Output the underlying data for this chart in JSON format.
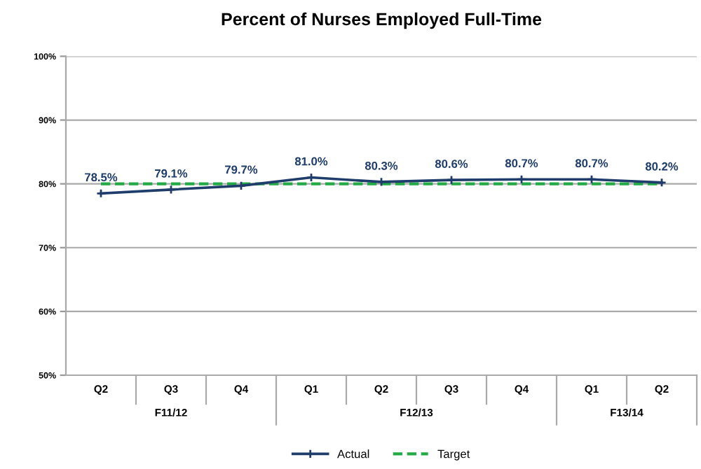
{
  "chart_data": {
    "type": "line",
    "title": "Percent of Nurses Employed Full-Time",
    "categories": [
      "Q2",
      "Q3",
      "Q4",
      "Q1",
      "Q2",
      "Q3",
      "Q4",
      "Q1",
      "Q2"
    ],
    "series": [
      {
        "name": "Actual",
        "color": "#1f3d6b",
        "marker": "cross",
        "line_style": "solid",
        "values": [
          78.5,
          79.1,
          79.7,
          81.0,
          80.3,
          80.6,
          80.7,
          80.7,
          80.2
        ],
        "value_labels": [
          "78.5%",
          "79.1%",
          "79.7%",
          "81.0%",
          "80.3%",
          "80.6%",
          "80.7%",
          "80.7%",
          "80.2%"
        ]
      },
      {
        "name": "Target",
        "color": "#22aa44",
        "marker": "none",
        "line_style": "dashed",
        "values": [
          80,
          80,
          80,
          80,
          80,
          80,
          80,
          80,
          80
        ]
      }
    ],
    "annotations": [
      "F11/12",
      "F12/13",
      "F13/14"
    ],
    "ylim": [
      50,
      100
    ],
    "yticks": [
      {
        "value": 50,
        "label": "50%"
      },
      {
        "value": 60,
        "label": "60%"
      },
      {
        "value": 70,
        "label": "70%"
      },
      {
        "value": 80,
        "label": "80%"
      },
      {
        "value": 90,
        "label": "90%"
      },
      {
        "value": 100,
        "label": "100%"
      }
    ],
    "grid": "y",
    "legend": "bottom"
  }
}
